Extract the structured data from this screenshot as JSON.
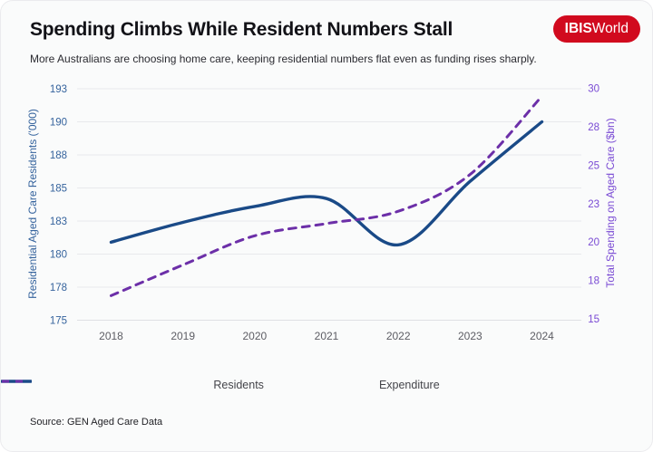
{
  "header": {
    "title": "Spending Climbs While Resident Numbers Stall",
    "subtitle": "More Australians are choosing home care, keeping residential numbers flat even as funding rises sharply.",
    "logo_bold": "IBIS",
    "logo_regular": "World"
  },
  "colors": {
    "residents_line": "#1a4a87",
    "expenditure_line": "#6c2fa8",
    "left_axis_text": "#35639d",
    "right_axis_text": "#7a4bd4",
    "x_axis_text": "#5d5d64",
    "gridline": "#e8e9ec",
    "baseline": "#dfe0e4",
    "logo_red": "#d10a1e"
  },
  "legend": {
    "items": [
      {
        "label": "Residents",
        "style": "solid"
      },
      {
        "label": "Expenditure",
        "style": "dashed"
      }
    ]
  },
  "source": "Source: GEN Aged Care Data",
  "chart_data": {
    "type": "line",
    "x": [
      2018,
      2019,
      2020,
      2021,
      2022,
      2023,
      2024
    ],
    "series": [
      {
        "name": "Residents",
        "axis": "left",
        "style": "solid",
        "values": [
          180.9,
          182.4,
          183.6,
          184.2,
          180.7,
          185.5,
          190.0
        ]
      },
      {
        "name": "Expenditure",
        "axis": "right",
        "style": "dashed",
        "values": [
          16.5,
          18.5,
          20.4,
          21.2,
          22.0,
          24.4,
          29.5
        ]
      }
    ],
    "left_axis": {
      "label": "Residential Aged Care Residents ('000)",
      "tick_labels": [
        "175",
        "178",
        "180",
        "183",
        "185",
        "188",
        "190",
        "193"
      ],
      "tick_values": [
        175,
        177.5,
        180,
        182.5,
        185,
        187.5,
        190,
        192.5
      ],
      "range": [
        175,
        192.5
      ]
    },
    "right_axis": {
      "label": "Total Spending on Aged Care ($bn)",
      "tick_labels": [
        "15",
        "18",
        "20",
        "23",
        "25",
        "28",
        "30"
      ],
      "tick_values": [
        15,
        17.5,
        20,
        22.5,
        25,
        27.5,
        30
      ],
      "range": [
        15,
        30
      ]
    },
    "x_axis": {
      "tick_labels": [
        "2018",
        "2019",
        "2020",
        "2021",
        "2022",
        "2023",
        "2024"
      ]
    },
    "grid": "horizontal",
    "legend_position": "bottom"
  }
}
